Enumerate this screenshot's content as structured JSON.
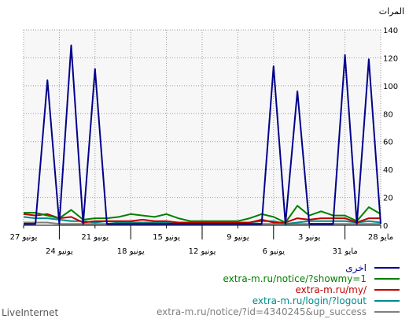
{
  "chart_data": {
    "type": "line",
    "ylabel": "المرات",
    "ylim": [
      0,
      140
    ],
    "yticks": [
      0,
      20,
      40,
      60,
      80,
      100,
      120,
      140
    ],
    "grid": true,
    "x_tick_labels_upper": [
      "28 مايو",
      "3 يونيو",
      "9 يونيو",
      "15 يونيو",
      "21 يونيو",
      "27 يونيو"
    ],
    "x_tick_labels_lower": [
      "31 مايو",
      "6 يونيو",
      "12 يونيو",
      "18 يونيو",
      "24 يونيو"
    ],
    "x_order": "right-to-left",
    "x": [
      "28 مايو",
      "29 مايو",
      "30 مايو",
      "31 مايو",
      "1 يونيو",
      "2 يونيو",
      "3 يونيو",
      "4 يونيو",
      "5 يونيو",
      "6 يونيو",
      "7 يونيو",
      "8 يونيو",
      "9 يونيو",
      "10 يونيو",
      "11 يونيو",
      "12 يونيو",
      "13 يونيو",
      "14 يونيو",
      "15 يونيو",
      "16 يونيو",
      "17 يونيو",
      "18 يونيو",
      "19 يونيو",
      "20 يونيو",
      "21 يونيو",
      "22 يونيو",
      "23 يونيو",
      "24 يونيو",
      "25 يونيو",
      "26 يونيو",
      "27 يونيو"
    ],
    "legend_position": "bottom-right",
    "series": [
      {
        "name": "اخرى",
        "color": "#00008b",
        "values": [
          1,
          119,
          1,
          122,
          1,
          1,
          1,
          96,
          1,
          114,
          1,
          1,
          1,
          1,
          1,
          1,
          1,
          1,
          1,
          1,
          1,
          1,
          1,
          1,
          112,
          1,
          129,
          1,
          104,
          1,
          1
        ]
      },
      {
        "name": "extra-m.ru/notice/?showmy=1",
        "color": "#008000",
        "values": [
          8,
          13,
          3,
          7,
          7,
          10,
          7,
          14,
          2,
          6,
          8,
          5,
          3,
          3,
          3,
          3,
          3,
          5,
          8,
          6,
          7,
          8,
          6,
          5,
          5,
          4,
          11,
          5,
          7,
          9,
          9
        ]
      },
      {
        "name": "extra-m.ru/my/",
        "color": "#c00000",
        "values": [
          5,
          5,
          2,
          5,
          5,
          5,
          4,
          5,
          2,
          2,
          4,
          2,
          2,
          2,
          2,
          2,
          2,
          2,
          3,
          3,
          4,
          3,
          3,
          3,
          3,
          2,
          6,
          5,
          8,
          7,
          8
        ]
      },
      {
        "name": "extra-m.ru/login/?logout",
        "color": "#008b8b",
        "values": [
          2,
          3,
          2,
          3,
          3,
          3,
          3,
          2,
          1,
          3,
          3,
          2,
          2,
          2,
          2,
          2,
          2,
          1,
          2,
          2,
          2,
          2,
          2,
          3,
          2,
          3,
          3,
          4,
          5,
          5,
          6
        ]
      },
      {
        "name": "extra-m.ru/notice/?id=4340245&up_success",
        "color": "#808080",
        "values": [
          1,
          1,
          1,
          1,
          1,
          1,
          1,
          1,
          1,
          1,
          1,
          1,
          1,
          1,
          1,
          1,
          1,
          1,
          1,
          1,
          1,
          1,
          1,
          1,
          1,
          1,
          1,
          1,
          2,
          2,
          2
        ]
      }
    ]
  },
  "footer": {
    "brand": "LiveInternet"
  }
}
